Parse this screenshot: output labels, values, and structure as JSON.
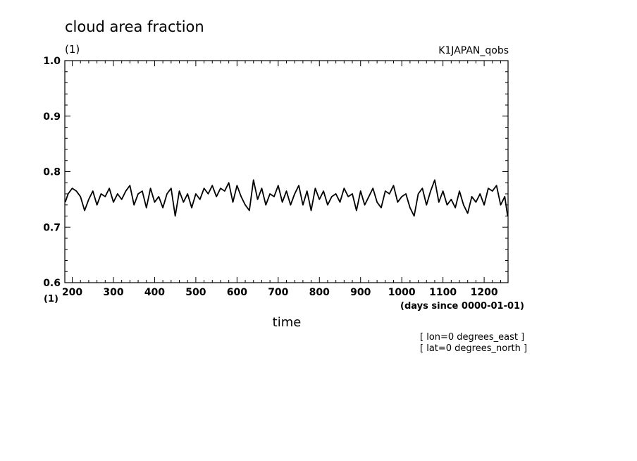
{
  "chart_data": {
    "type": "line",
    "title": "cloud area fraction",
    "ylabel": "(1)",
    "xlabel": "time",
    "x_units": "(days since 0000-01-01)",
    "x_unit_left": "(1)",
    "dataset_label": "K1JAPAN_qobs",
    "notes": [
      "[ lon=0 degrees_east ]",
      "[ lat=0 degrees_north ]"
    ],
    "xlim": [
      182,
      1258
    ],
    "ylim": [
      0.6,
      1.0
    ],
    "x_ticks": [
      200,
      300,
      400,
      500,
      600,
      700,
      800,
      900,
      1000,
      1100,
      1200
    ],
    "x_tick_labels": [
      "200",
      "300",
      "400",
      "500",
      "600",
      "700",
      "800",
      "900",
      "1000",
      "1100",
      "1200"
    ],
    "y_ticks": [
      0.6,
      0.7,
      0.8,
      0.9,
      1.0
    ],
    "y_tick_labels": [
      "0.6",
      "0.7",
      "0.8",
      "0.9",
      "1.0"
    ],
    "grid": false,
    "line_color": "#000000",
    "series": [
      {
        "x": [
          183,
          190,
          200,
          210,
          220,
          230,
          240,
          250,
          260,
          270,
          280,
          290,
          300,
          310,
          320,
          330,
          340,
          350,
          360,
          370,
          380,
          390,
          400,
          410,
          420,
          430,
          440,
          450,
          460,
          470,
          480,
          490,
          500,
          510,
          520,
          530,
          540,
          550,
          560,
          570,
          580,
          590,
          600,
          610,
          620,
          630,
          640,
          650,
          660,
          670,
          680,
          690,
          700,
          710,
          720,
          730,
          740,
          750,
          760,
          770,
          780,
          790,
          800,
          810,
          820,
          830,
          840,
          850,
          860,
          870,
          880,
          890,
          900,
          910,
          920,
          930,
          940,
          950,
          960,
          970,
          980,
          990,
          1000,
          1010,
          1020,
          1030,
          1040,
          1050,
          1060,
          1070,
          1080,
          1090,
          1100,
          1110,
          1120,
          1130,
          1140,
          1150,
          1160,
          1170,
          1180,
          1190,
          1200,
          1210,
          1220,
          1230,
          1240,
          1250,
          1257
        ],
        "values": [
          0.745,
          0.76,
          0.77,
          0.765,
          0.755,
          0.73,
          0.75,
          0.765,
          0.74,
          0.76,
          0.755,
          0.77,
          0.745,
          0.76,
          0.75,
          0.765,
          0.775,
          0.74,
          0.76,
          0.765,
          0.735,
          0.77,
          0.745,
          0.755,
          0.735,
          0.76,
          0.77,
          0.72,
          0.765,
          0.745,
          0.76,
          0.735,
          0.76,
          0.75,
          0.77,
          0.76,
          0.775,
          0.755,
          0.77,
          0.765,
          0.78,
          0.745,
          0.775,
          0.755,
          0.74,
          0.73,
          0.785,
          0.75,
          0.77,
          0.74,
          0.76,
          0.755,
          0.775,
          0.745,
          0.765,
          0.74,
          0.76,
          0.775,
          0.74,
          0.765,
          0.73,
          0.77,
          0.75,
          0.765,
          0.74,
          0.755,
          0.76,
          0.745,
          0.77,
          0.755,
          0.76,
          0.73,
          0.765,
          0.74,
          0.755,
          0.77,
          0.745,
          0.735,
          0.765,
          0.76,
          0.775,
          0.745,
          0.755,
          0.76,
          0.735,
          0.72,
          0.76,
          0.77,
          0.74,
          0.765,
          0.785,
          0.745,
          0.765,
          0.74,
          0.75,
          0.735,
          0.765,
          0.74,
          0.725,
          0.755,
          0.745,
          0.76,
          0.74,
          0.77,
          0.765,
          0.775,
          0.74,
          0.755,
          0.72
        ]
      }
    ]
  }
}
